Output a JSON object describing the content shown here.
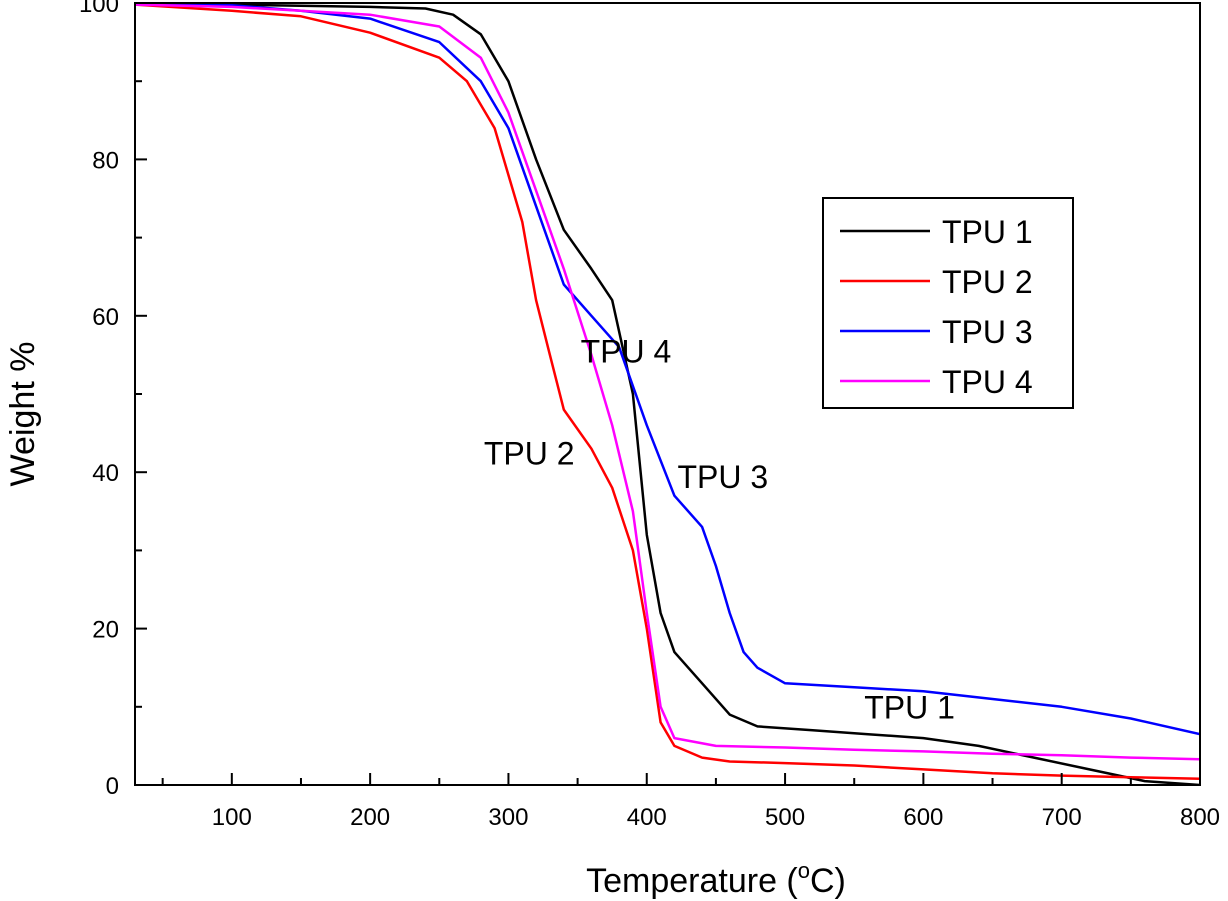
{
  "chart_data": {
    "type": "line",
    "title": "",
    "xlabel": "Temperature (",
    "xlabel_unit": "o",
    "xlabel_suffix": "C)",
    "ylabel": "Weight %",
    "xlim": [
      30,
      800
    ],
    "ylim": [
      0,
      100
    ],
    "x_ticks": [
      100,
      200,
      300,
      400,
      500,
      600,
      700,
      800
    ],
    "y_ticks": [
      0,
      20,
      40,
      60,
      80,
      100
    ],
    "legend_position": "upper-right",
    "series": [
      {
        "name": "TPU 1",
        "color": "#000000",
        "points": [
          [
            30,
            100
          ],
          [
            100,
            99.8
          ],
          [
            200,
            99.5
          ],
          [
            240,
            99.3
          ],
          [
            260,
            98.5
          ],
          [
            280,
            96
          ],
          [
            300,
            90
          ],
          [
            320,
            80
          ],
          [
            340,
            71
          ],
          [
            360,
            66
          ],
          [
            375,
            62
          ],
          [
            390,
            50
          ],
          [
            400,
            32
          ],
          [
            410,
            22
          ],
          [
            420,
            17
          ],
          [
            440,
            13
          ],
          [
            460,
            9
          ],
          [
            480,
            7.5
          ],
          [
            520,
            7
          ],
          [
            560,
            6.5
          ],
          [
            600,
            6
          ],
          [
            640,
            5
          ],
          [
            680,
            3.5
          ],
          [
            720,
            2
          ],
          [
            760,
            0.5
          ],
          [
            800,
            0
          ]
        ]
      },
      {
        "name": "TPU 2",
        "color": "#ff0000",
        "points": [
          [
            30,
            99.8
          ],
          [
            100,
            99
          ],
          [
            150,
            98.3
          ],
          [
            200,
            96.2
          ],
          [
            250,
            93
          ],
          [
            270,
            90
          ],
          [
            290,
            84
          ],
          [
            310,
            72
          ],
          [
            320,
            62
          ],
          [
            330,
            55
          ],
          [
            340,
            48
          ],
          [
            360,
            43
          ],
          [
            375,
            38
          ],
          [
            390,
            30
          ],
          [
            400,
            20
          ],
          [
            410,
            8
          ],
          [
            420,
            5
          ],
          [
            440,
            3.5
          ],
          [
            460,
            3
          ],
          [
            500,
            2.8
          ],
          [
            550,
            2.5
          ],
          [
            600,
            2
          ],
          [
            650,
            1.5
          ],
          [
            700,
            1.2
          ],
          [
            750,
            1
          ],
          [
            800,
            0.8
          ]
        ]
      },
      {
        "name": "TPU 3",
        "color": "#0000ff",
        "points": [
          [
            30,
            100
          ],
          [
            100,
            99.7
          ],
          [
            150,
            99
          ],
          [
            200,
            98
          ],
          [
            250,
            95
          ],
          [
            280,
            90
          ],
          [
            300,
            84
          ],
          [
            320,
            74
          ],
          [
            340,
            64
          ],
          [
            360,
            60
          ],
          [
            380,
            56
          ],
          [
            400,
            46
          ],
          [
            420,
            37
          ],
          [
            440,
            33
          ],
          [
            450,
            28
          ],
          [
            460,
            22
          ],
          [
            470,
            17
          ],
          [
            480,
            15
          ],
          [
            500,
            13
          ],
          [
            550,
            12.5
          ],
          [
            600,
            12
          ],
          [
            650,
            11
          ],
          [
            700,
            10
          ],
          [
            750,
            8.5
          ],
          [
            800,
            6.5
          ]
        ]
      },
      {
        "name": "TPU 4",
        "color": "#ff00ff",
        "points": [
          [
            30,
            99.8
          ],
          [
            100,
            99.5
          ],
          [
            150,
            99
          ],
          [
            200,
            98.5
          ],
          [
            250,
            97
          ],
          [
            280,
            93
          ],
          [
            300,
            86
          ],
          [
            320,
            76
          ],
          [
            340,
            66
          ],
          [
            360,
            55
          ],
          [
            375,
            46
          ],
          [
            390,
            35
          ],
          [
            400,
            22
          ],
          [
            410,
            10
          ],
          [
            420,
            6
          ],
          [
            450,
            5
          ],
          [
            500,
            4.8
          ],
          [
            550,
            4.5
          ],
          [
            600,
            4.3
          ],
          [
            650,
            4
          ],
          [
            700,
            3.8
          ],
          [
            750,
            3.5
          ],
          [
            800,
            3.3
          ]
        ]
      }
    ],
    "annotations": [
      {
        "text": "TPU 4",
        "x": 385,
        "y": 54
      },
      {
        "text": "TPU 2",
        "x": 315,
        "y": 41
      },
      {
        "text": "TPU 3",
        "x": 455,
        "y": 38
      },
      {
        "text": "TPU 1",
        "x": 590,
        "y": 8.5
      }
    ]
  }
}
